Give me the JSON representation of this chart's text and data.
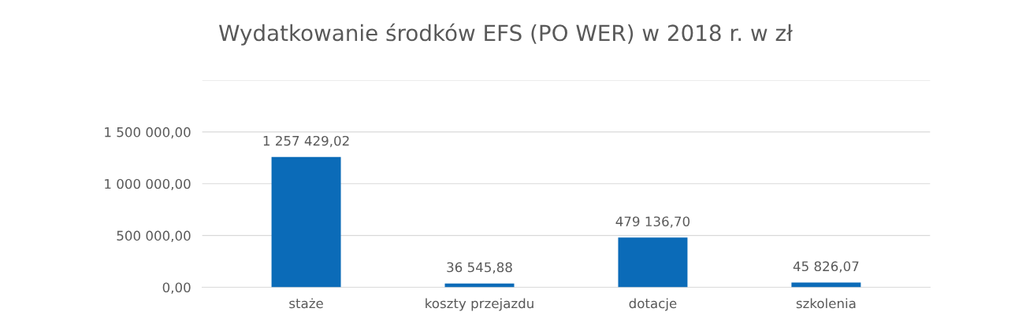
{
  "chart_data": {
    "type": "bar",
    "title": "Wydatkowanie środków EFS (PO WER) w 2018 r. w zł",
    "categories": [
      "staże",
      "koszty przejazdu",
      "dotacje",
      "szkolenia"
    ],
    "values": [
      1257429.02,
      36545.88,
      479136.7,
      45826.07
    ],
    "value_labels": [
      "1 257 429,02",
      "36 545,88",
      "479 136,70",
      "45 826,07"
    ],
    "color": "#0b6bb8",
    "ylim": [
      0,
      2000000
    ],
    "yticks": [
      {
        "value": 0,
        "label": "0,00"
      },
      {
        "value": 500000,
        "label": "500 000,00"
      },
      {
        "value": 1000000,
        "label": "1 000 000,00"
      },
      {
        "value": 1500000,
        "label": "1 500 000,00"
      },
      {
        "value": 2000000,
        "label": null
      }
    ],
    "grid": "y"
  }
}
